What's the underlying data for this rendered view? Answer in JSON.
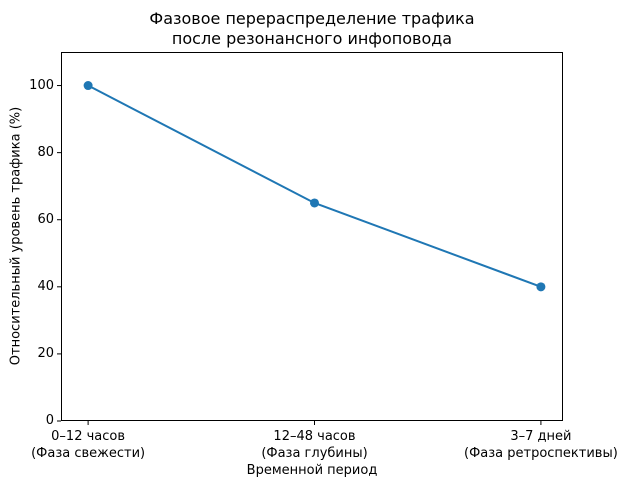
{
  "chart_data": {
    "type": "line",
    "title": "Фазовое перераспределение трафика\nпосле резонансного инфоповода",
    "xlabel": "Временной период",
    "ylabel": "Относительный уровень трафика (%)",
    "categories": [
      "0–12 часов\n(Фаза свежести)",
      "12–48 часов\n(Фаза глубины)",
      "3–7 дней\n(Фаза ретроспективы)"
    ],
    "values": [
      100,
      65,
      40
    ],
    "yticks": [
      0,
      20,
      40,
      60,
      80,
      100
    ],
    "ylim": [
      0,
      110
    ],
    "grid": false,
    "legend": "none",
    "line_color": "#1f77b4",
    "marker": "circle",
    "axis_color": "#000000",
    "background_color": "#ffffff"
  }
}
